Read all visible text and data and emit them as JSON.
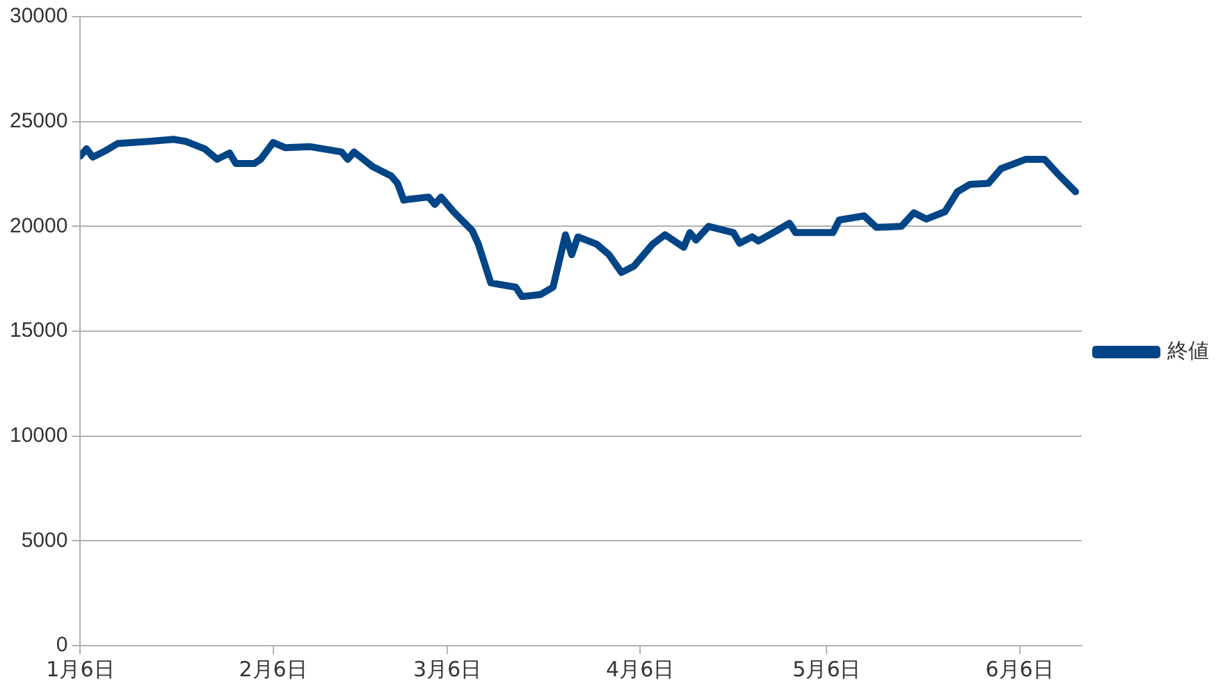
{
  "chart_data": {
    "type": "line",
    "x": [
      "--01-06",
      "--01-07",
      "--01-08",
      "--01-10",
      "--01-12",
      "--01-17",
      "--01-21",
      "--01-23",
      "--01-26",
      "--01-28",
      "--01-30",
      "--01-31",
      "--02-03",
      "--02-04",
      "--02-06",
      "--02-08",
      "--02-12",
      "--02-17",
      "--02-18",
      "--02-19",
      "--02-22",
      "--02-25",
      "--02-26",
      "--02-27",
      "--02-28",
      "--03-03",
      "--03-04",
      "--03-05",
      "--03-07",
      "--03-10",
      "--03-11",
      "--03-13",
      "--03-17",
      "--03-18",
      "--03-21",
      "--03-23",
      "--03-25",
      "--03-26",
      "--03-27",
      "--03-30",
      "--04-01",
      "--04-03",
      "--04-05",
      "--04-08",
      "--04-10",
      "--04-13",
      "--04-14",
      "--04-15",
      "--04-17",
      "--04-21",
      "--04-22",
      "--04-24",
      "--04-25",
      "--04-28",
      "--04-30",
      "--05-01",
      "--05-07",
      "--05-08",
      "--05-12",
      "--05-14",
      "--05-18",
      "--05-20",
      "--05-22",
      "--05-25",
      "--05-27",
      "--05-29",
      "--06-01",
      "--06-03",
      "--06-07",
      "--06-10",
      "--06-12",
      "--06-15"
    ],
    "series": [
      {
        "name": "終値",
        "color": "#004586",
        "values": [
          23350,
          23700,
          23300,
          23600,
          23950,
          24050,
          24150,
          24050,
          23700,
          23200,
          23500,
          23000,
          23000,
          23200,
          24000,
          23750,
          23800,
          23550,
          23200,
          23550,
          22850,
          22400,
          22050,
          21250,
          21300,
          21400,
          21050,
          21400,
          20700,
          19800,
          19150,
          17300,
          17100,
          16650,
          16750,
          17100,
          19600,
          18650,
          19500,
          19150,
          18650,
          17800,
          18100,
          19150,
          19600,
          19000,
          19700,
          19350,
          20000,
          19700,
          19200,
          19500,
          19300,
          19800,
          20150,
          19700,
          19700,
          20300,
          20500,
          19950,
          20000,
          20650,
          20350,
          20700,
          21650,
          22000,
          22050,
          22750,
          23200,
          23200,
          22550,
          21650
        ]
      }
    ],
    "xlim": [
      "--01-06",
      "--06-16"
    ],
    "xticks": [
      {
        "value": "--01-06",
        "label": "1月6日"
      },
      {
        "value": "--02-06",
        "label": "2月6日"
      },
      {
        "value": "--03-06",
        "label": "3月6日"
      },
      {
        "value": "--04-06",
        "label": "4月6日"
      },
      {
        "value": "--05-06",
        "label": "5月6日"
      },
      {
        "value": "--06-06",
        "label": "6月6日"
      }
    ],
    "ylim": [
      0,
      30000
    ],
    "yticks": [
      0,
      5000,
      10000,
      15000,
      20000,
      25000,
      30000
    ],
    "grid": "y",
    "legend": "right",
    "marker": "none",
    "line_style": "solid"
  }
}
